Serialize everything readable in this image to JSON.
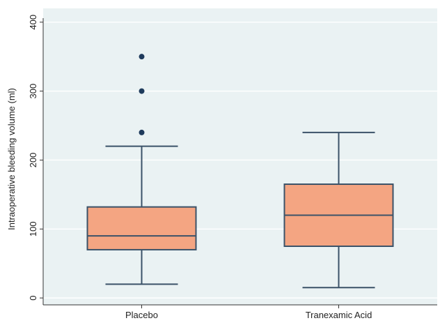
{
  "chart_data": {
    "type": "boxplot",
    "ylabel": "Intraoperative bleeding volume (ml)",
    "ylim": [
      -10,
      420
    ],
    "yticks": [
      0,
      100,
      200,
      300,
      400
    ],
    "grid": true,
    "categories": [
      "Placebo",
      "Tranexamic Acid"
    ],
    "boxes": [
      {
        "category": "Placebo",
        "whisker_low": 20,
        "q1": 70,
        "median": 90,
        "q3": 132,
        "whisker_high": 220,
        "outliers": [
          240,
          300,
          350
        ]
      },
      {
        "category": "Tranexamic Acid",
        "whisker_low": 15,
        "q1": 75,
        "median": 120,
        "q3": 165,
        "whisker_high": 240,
        "outliers": []
      }
    ],
    "colors": {
      "box_fill": "#f4a582",
      "box_stroke": "#3b5268",
      "outlier": "#1f3b5c",
      "plot_bg": "#eaf2f3",
      "grid": "#ffffff"
    }
  }
}
